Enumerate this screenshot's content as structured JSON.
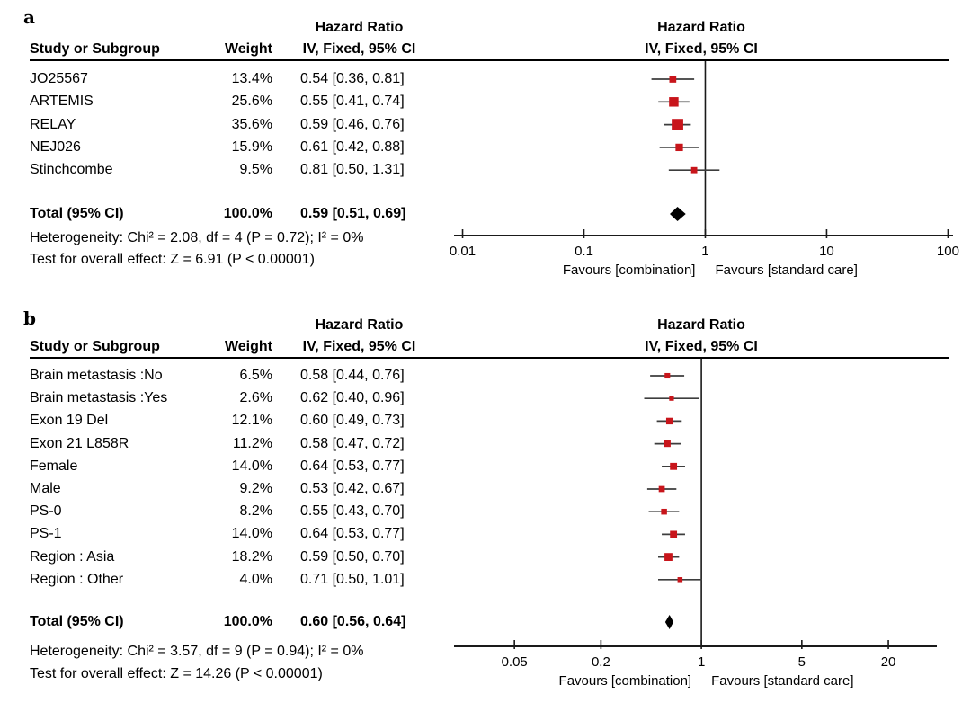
{
  "colors": {
    "background": "#ffffff",
    "text": "#000000",
    "marker_red": "#c8151b",
    "whisker": "#3d3d3d",
    "axis_line": "#1a1a1a",
    "diamond": "#000000"
  },
  "chart_data": [
    {
      "type": "forest",
      "panel_label": "a",
      "columns": {
        "study": "Study or Subgroup",
        "weight": "Weight",
        "effect_line1": "Hazard Ratio",
        "effect_line2": "IV, Fixed, 95% CI"
      },
      "plot_header_line1": "Hazard Ratio",
      "plot_header_line2": "IV, Fixed, 95% CI",
      "studies": [
        {
          "name": "JO25567",
          "weight_pct": 13.4,
          "weight_label": "13.4%",
          "hr": 0.54,
          "ci_low": 0.36,
          "ci_high": 0.81,
          "ci_label": "0.54 [0.36, 0.81]"
        },
        {
          "name": "ARTEMIS",
          "weight_pct": 25.6,
          "weight_label": "25.6%",
          "hr": 0.55,
          "ci_low": 0.41,
          "ci_high": 0.74,
          "ci_label": "0.55 [0.41, 0.74]"
        },
        {
          "name": "RELAY",
          "weight_pct": 35.6,
          "weight_label": "35.6%",
          "hr": 0.59,
          "ci_low": 0.46,
          "ci_high": 0.76,
          "ci_label": "0.59 [0.46, 0.76]"
        },
        {
          "name": "NEJ026",
          "weight_pct": 15.9,
          "weight_label": "15.9%",
          "hr": 0.61,
          "ci_low": 0.42,
          "ci_high": 0.88,
          "ci_label": "0.61 [0.42, 0.88]"
        },
        {
          "name": "Stinchcombe",
          "weight_pct": 9.5,
          "weight_label": "9.5%",
          "hr": 0.81,
          "ci_low": 0.5,
          "ci_high": 1.31,
          "ci_label": "0.81 [0.50, 1.31]"
        }
      ],
      "total": {
        "name": "Total (95% CI)",
        "weight_label": "100.0%",
        "hr": 0.59,
        "ci_low": 0.51,
        "ci_high": 0.69,
        "ci_label": "0.59 [0.51, 0.69]"
      },
      "heterogeneity": "Heterogeneity: Chi² = 2.08, df = 4 (P = 0.72); I² = 0%",
      "overall_effect": "Test for overall effect: Z = 6.91 (P < 0.00001)",
      "axis": {
        "scale": "log",
        "ticks": [
          0.01,
          0.1,
          1,
          10,
          100
        ],
        "tick_labels": [
          "0.01",
          "0.1",
          "1",
          "10",
          "100"
        ],
        "line_min": 0.0085,
        "line_max": 110
      },
      "favours_left": "Favours [combination]",
      "favours_right": "Favours [standard care]"
    },
    {
      "type": "forest",
      "panel_label": "b",
      "columns": {
        "study": "Study or Subgroup",
        "weight": "Weight",
        "effect_line1": "Hazard Ratio",
        "effect_line2": "IV, Fixed, 95% CI"
      },
      "plot_header_line1": "Hazard Ratio",
      "plot_header_line2": "IV, Fixed, 95% CI",
      "studies": [
        {
          "name": "Brain metastasis :No",
          "weight_pct": 6.5,
          "weight_label": "6.5%",
          "hr": 0.58,
          "ci_low": 0.44,
          "ci_high": 0.76,
          "ci_label": "0.58 [0.44, 0.76]"
        },
        {
          "name": "Brain metastasis :Yes",
          "weight_pct": 2.6,
          "weight_label": "2.6%",
          "hr": 0.62,
          "ci_low": 0.4,
          "ci_high": 0.96,
          "ci_label": "0.62 [0.40, 0.96]"
        },
        {
          "name": "Exon 19 Del",
          "weight_pct": 12.1,
          "weight_label": "12.1%",
          "hr": 0.6,
          "ci_low": 0.49,
          "ci_high": 0.73,
          "ci_label": "0.60 [0.49, 0.73]"
        },
        {
          "name": "Exon 21 L858R",
          "weight_pct": 11.2,
          "weight_label": "11.2%",
          "hr": 0.58,
          "ci_low": 0.47,
          "ci_high": 0.72,
          "ci_label": "0.58 [0.47, 0.72]"
        },
        {
          "name": "Female",
          "weight_pct": 14.0,
          "weight_label": "14.0%",
          "hr": 0.64,
          "ci_low": 0.53,
          "ci_high": 0.77,
          "ci_label": "0.64 [0.53, 0.77]"
        },
        {
          "name": "Male",
          "weight_pct": 9.2,
          "weight_label": "9.2%",
          "hr": 0.53,
          "ci_low": 0.42,
          "ci_high": 0.67,
          "ci_label": "0.53 [0.42, 0.67]"
        },
        {
          "name": "PS-0",
          "weight_pct": 8.2,
          "weight_label": "8.2%",
          "hr": 0.55,
          "ci_low": 0.43,
          "ci_high": 0.7,
          "ci_label": "0.55 [0.43, 0.70]"
        },
        {
          "name": "PS-1",
          "weight_pct": 14.0,
          "weight_label": "14.0%",
          "hr": 0.64,
          "ci_low": 0.53,
          "ci_high": 0.77,
          "ci_label": "0.64 [0.53, 0.77]"
        },
        {
          "name": "Region : Asia",
          "weight_pct": 18.2,
          "weight_label": "18.2%",
          "hr": 0.59,
          "ci_low": 0.5,
          "ci_high": 0.7,
          "ci_label": "0.59 [0.50, 0.70]"
        },
        {
          "name": "Region : Other",
          "weight_pct": 4.0,
          "weight_label": "4.0%",
          "hr": 0.71,
          "ci_low": 0.5,
          "ci_high": 1.01,
          "ci_label": "0.71 [0.50, 1.01]"
        }
      ],
      "total": {
        "name": "Total (95% CI)",
        "weight_label": "100.0%",
        "hr": 0.6,
        "ci_low": 0.56,
        "ci_high": 0.64,
        "ci_label": "0.60 [0.56, 0.64]"
      },
      "heterogeneity": "Heterogeneity: Chi² = 3.57, df = 9 (P = 0.94); I² = 0%",
      "overall_effect": "Test for overall effect: Z = 14.26 (P < 0.00001)",
      "axis": {
        "scale": "log",
        "ticks": [
          0.05,
          0.2,
          1,
          5,
          20
        ],
        "tick_labels": [
          "0.05",
          "0.2",
          "1",
          "5",
          "20"
        ],
        "line_min": 0.019,
        "line_max": 43.5
      },
      "favours_left": "Favours [combination]",
      "favours_right": "Favours [standard care]"
    }
  ]
}
